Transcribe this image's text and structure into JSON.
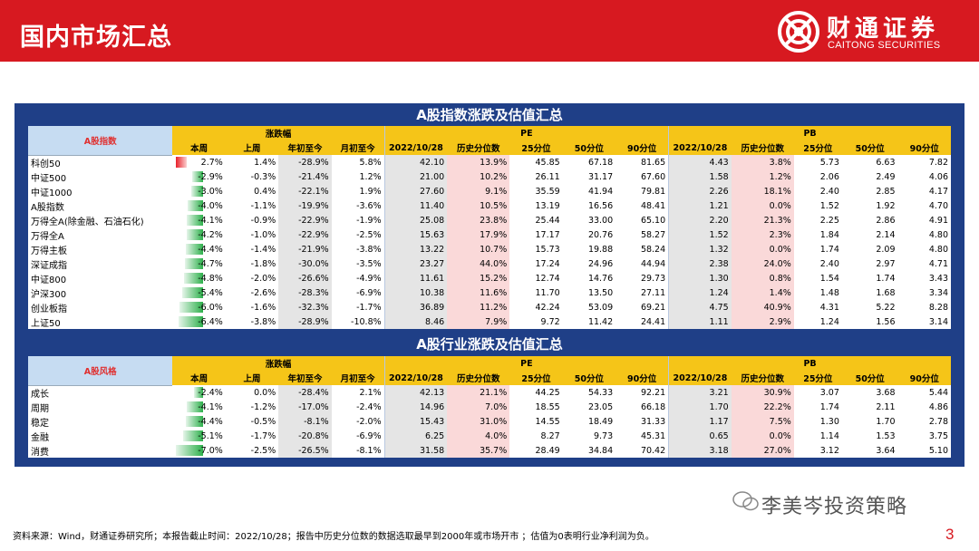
{
  "header": {
    "title": "国内市场汇总",
    "logo_cn": "财通证券",
    "logo_en": "CAITONG SECURITIES"
  },
  "colors": {
    "brand_red": "#d71920",
    "frame_blue": "#1f3f87",
    "header_yellow": "#f5c518",
    "bar_green": "#2db04b",
    "bar_red": "#e8202a"
  },
  "t1": {
    "title": "A股指数涨跌及估值汇总",
    "corner": "A股指数",
    "group_change": "涨跌幅",
    "group_pe": "PE",
    "group_pb": "PB",
    "cols": [
      "本周",
      "上周",
      "年初至今",
      "月初至今",
      "2022/10/28",
      "历史分位数",
      "25分位",
      "50分位",
      "90分位",
      "2022/10/28",
      "历史分位数",
      "25分位",
      "50分位",
      "90分位"
    ],
    "rows": [
      {
        "name": "科创50",
        "week_pct": 2.7,
        "v": [
          "2.7%",
          "1.4%",
          "-28.9%",
          "5.8%",
          "42.10",
          "13.9%",
          "45.85",
          "67.18",
          "81.65",
          "4.43",
          "3.8%",
          "5.73",
          "6.63",
          "7.82"
        ]
      },
      {
        "name": "中证500",
        "week_pct": -2.9,
        "v": [
          "-2.9%",
          "-0.3%",
          "-21.4%",
          "1.2%",
          "21.00",
          "10.2%",
          "26.11",
          "31.17",
          "67.60",
          "1.58",
          "1.2%",
          "2.06",
          "2.49",
          "4.06"
        ]
      },
      {
        "name": "中证1000",
        "week_pct": -3.0,
        "v": [
          "-3.0%",
          "0.4%",
          "-22.1%",
          "1.9%",
          "27.60",
          "9.1%",
          "35.59",
          "41.94",
          "79.81",
          "2.26",
          "18.1%",
          "2.40",
          "2.85",
          "4.17"
        ]
      },
      {
        "name": "A股指数",
        "week_pct": -4.0,
        "v": [
          "-4.0%",
          "-1.1%",
          "-19.9%",
          "-3.6%",
          "11.40",
          "10.5%",
          "13.19",
          "16.56",
          "48.41",
          "1.21",
          "0.0%",
          "1.52",
          "1.92",
          "4.70"
        ]
      },
      {
        "name": "万得全A(除金融、石油石化)",
        "week_pct": -4.1,
        "v": [
          "-4.1%",
          "-0.9%",
          "-22.9%",
          "-1.9%",
          "25.08",
          "23.8%",
          "25.44",
          "33.00",
          "65.10",
          "2.20",
          "21.3%",
          "2.25",
          "2.86",
          "4.91"
        ]
      },
      {
        "name": "万得全A",
        "week_pct": -4.2,
        "v": [
          "-4.2%",
          "-1.0%",
          "-22.9%",
          "-2.5%",
          "15.63",
          "17.9%",
          "17.17",
          "20.76",
          "58.27",
          "1.52",
          "2.3%",
          "1.84",
          "2.14",
          "4.80"
        ]
      },
      {
        "name": "万得主板",
        "week_pct": -4.4,
        "v": [
          "-4.4%",
          "-1.4%",
          "-21.9%",
          "-3.8%",
          "13.22",
          "10.7%",
          "15.73",
          "19.88",
          "58.24",
          "1.32",
          "0.0%",
          "1.74",
          "2.09",
          "4.80"
        ]
      },
      {
        "name": "深证成指",
        "week_pct": -4.7,
        "v": [
          "-4.7%",
          "-1.8%",
          "-30.0%",
          "-3.5%",
          "23.27",
          "44.0%",
          "17.24",
          "24.96",
          "44.94",
          "2.38",
          "24.0%",
          "2.40",
          "2.97",
          "4.71"
        ]
      },
      {
        "name": "中证800",
        "week_pct": -4.8,
        "v": [
          "-4.8%",
          "-2.0%",
          "-26.6%",
          "-4.9%",
          "11.61",
          "15.2%",
          "12.74",
          "14.76",
          "29.73",
          "1.30",
          "0.8%",
          "1.54",
          "1.74",
          "3.43"
        ]
      },
      {
        "name": "沪深300",
        "week_pct": -5.4,
        "v": [
          "-5.4%",
          "-2.6%",
          "-28.3%",
          "-6.9%",
          "10.38",
          "11.6%",
          "11.70",
          "13.50",
          "27.11",
          "1.24",
          "1.4%",
          "1.48",
          "1.68",
          "3.34"
        ]
      },
      {
        "name": "创业板指",
        "week_pct": -6.0,
        "v": [
          "-6.0%",
          "-1.6%",
          "-32.3%",
          "-1.7%",
          "36.89",
          "11.2%",
          "42.24",
          "53.09",
          "69.21",
          "4.75",
          "40.9%",
          "4.31",
          "5.22",
          "8.28"
        ]
      },
      {
        "name": "上证50",
        "week_pct": -6.4,
        "v": [
          "-6.4%",
          "-3.8%",
          "-28.9%",
          "-10.8%",
          "8.46",
          "7.9%",
          "9.72",
          "11.42",
          "24.41",
          "1.11",
          "2.9%",
          "1.24",
          "1.56",
          "3.14"
        ]
      }
    ]
  },
  "t2": {
    "title": "A股行业涨跌及估值汇总",
    "corner": "A股风格",
    "group_change": "涨跌幅",
    "group_pe": "PE",
    "group_pb": "PB",
    "cols": [
      "本周",
      "上周",
      "年初至今",
      "月初至今",
      "2022/10/28",
      "历史分位数",
      "25分位",
      "50分位",
      "90分位",
      "2022/10/28",
      "历史分位数",
      "25分位",
      "50分位",
      "90分位"
    ],
    "rows": [
      {
        "name": "成长",
        "week_pct": -2.4,
        "v": [
          "-2.4%",
          "0.0%",
          "-28.4%",
          "2.1%",
          "42.13",
          "21.1%",
          "44.25",
          "54.33",
          "92.21",
          "3.21",
          "30.9%",
          "3.07",
          "3.68",
          "5.44"
        ]
      },
      {
        "name": "周期",
        "week_pct": -4.1,
        "v": [
          "-4.1%",
          "-1.2%",
          "-17.0%",
          "-2.4%",
          "14.96",
          "7.0%",
          "18.55",
          "23.05",
          "66.18",
          "1.70",
          "22.2%",
          "1.74",
          "2.11",
          "4.86"
        ]
      },
      {
        "name": "稳定",
        "week_pct": -4.4,
        "v": [
          "-4.4%",
          "-0.5%",
          "-8.1%",
          "-2.0%",
          "15.43",
          "31.0%",
          "14.55",
          "18.49",
          "31.33",
          "1.17",
          "7.5%",
          "1.30",
          "1.70",
          "2.78"
        ]
      },
      {
        "name": "金融",
        "week_pct": -5.1,
        "v": [
          "-5.1%",
          "-1.7%",
          "-20.8%",
          "-6.9%",
          "6.25",
          "4.0%",
          "8.27",
          "9.73",
          "45.31",
          "0.65",
          "0.0%",
          "1.14",
          "1.53",
          "3.75"
        ]
      },
      {
        "name": "消费",
        "week_pct": -7.0,
        "v": [
          "-7.0%",
          "-2.5%",
          "-26.5%",
          "-8.1%",
          "31.58",
          "35.7%",
          "28.49",
          "34.84",
          "70.42",
          "3.18",
          "27.0%",
          "3.12",
          "3.64",
          "5.10"
        ]
      }
    ]
  },
  "footer": "资料来源：Wind，财通证券研究所；本报告截止时间：2022/10/28；报告中历史分位数的数据选取最早到2000年或市场开市 ；估值为0表明行业净利润为负。",
  "watermark": "李美岑投资策略",
  "page_number": "3"
}
